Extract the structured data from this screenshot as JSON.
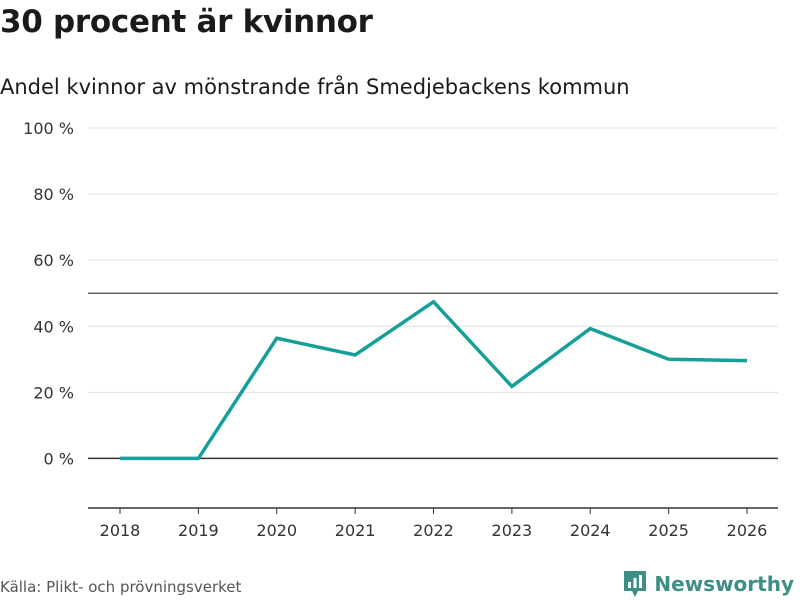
{
  "header": {
    "title": "30 procent är kvinnor",
    "subtitle": "Andel kvinnor av mönstrande från Smedjebackens kommun"
  },
  "footer": {
    "source": "Källa: Plikt- och prövningsverket",
    "brand": "Newsworthy",
    "brand_icon": "newsworthy-logo-icon"
  },
  "colors": {
    "line": "#14a098",
    "grid": "#e0e0e0",
    "reference": "#444444",
    "axis": "#333333",
    "brand": "#3d8f86"
  },
  "chart_data": {
    "type": "line",
    "title": "30 procent är kvinnor",
    "subtitle": "Andel kvinnor av mönstrande från Smedjebackens kommun",
    "xlabel": "",
    "ylabel": "",
    "x": [
      "2018",
      "2019",
      "2020",
      "2021",
      "2022",
      "2023",
      "2024",
      "2025",
      "2026"
    ],
    "series": [
      {
        "name": "Andel kvinnor",
        "values": [
          0,
          0,
          36.4,
          31.3,
          47.4,
          21.8,
          39.3,
          30.0,
          29.6
        ]
      }
    ],
    "ylim": [
      -15,
      100
    ],
    "yticks": [
      0,
      20,
      40,
      60,
      80,
      100
    ],
    "ytick_labels": [
      "0 %",
      "20 %",
      "40 %",
      "60 %",
      "80 %",
      "100 %"
    ],
    "reference_line": 50,
    "grid": true,
    "legend": "none"
  }
}
